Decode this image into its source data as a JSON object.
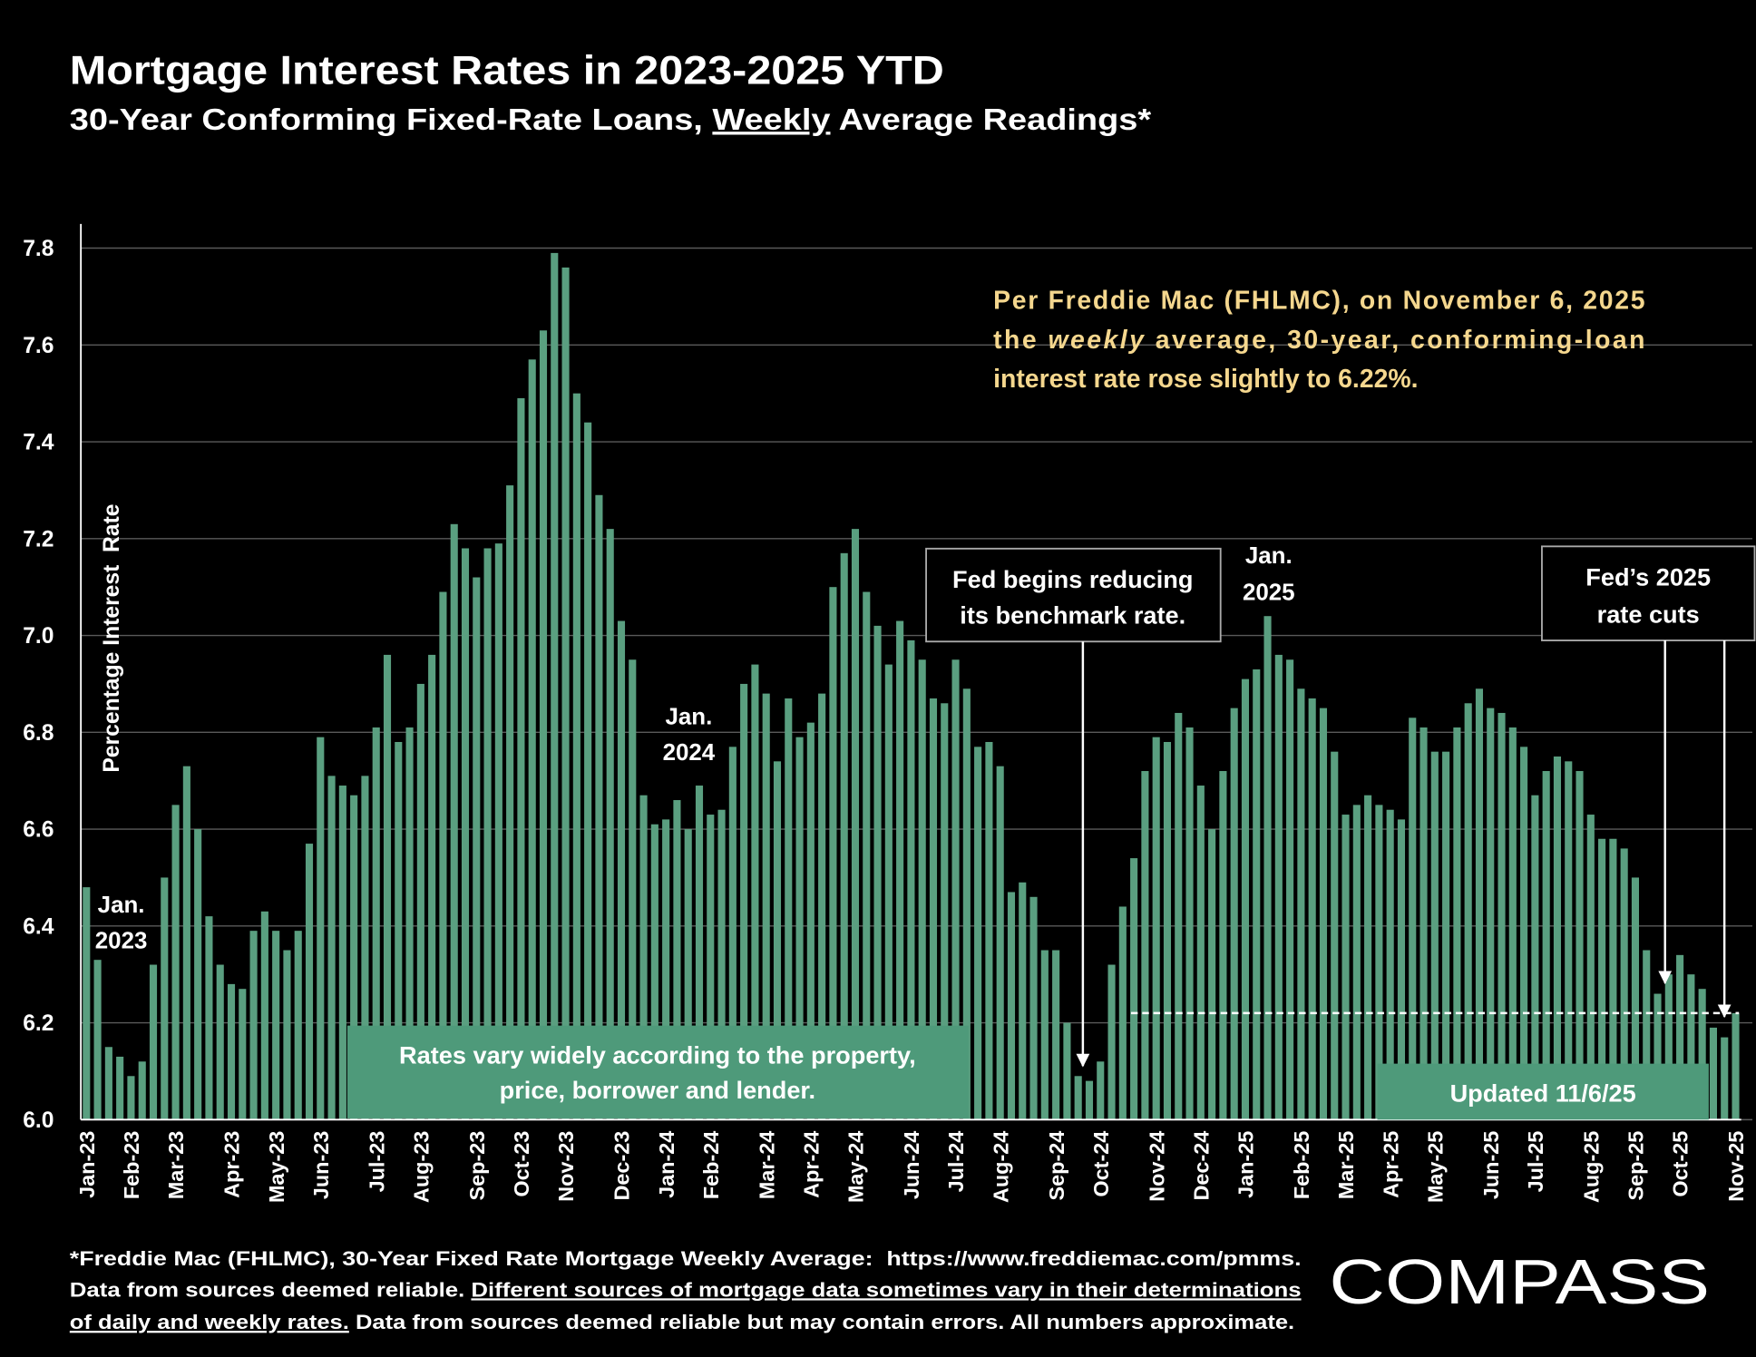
{
  "chart_data": {
    "type": "bar",
    "title": "Mortgage Interest Rates in 2023-2025 YTD",
    "subtitle": [
      "30-Year Conforming Fixed-Rate Loans, ",
      "Weekly",
      " Average Readings*"
    ],
    "y_label": "Percentage Interest  Rate",
    "color": "#5a9f80",
    "grid": true,
    "ylim": [
      6.0,
      7.85
    ],
    "yticks": [
      {
        "value": 6,
        "label": "6.0"
      },
      6.2,
      6.4,
      6.6,
      6.8,
      {
        "value": 7,
        "label": "7.0"
      },
      7.2,
      7.4,
      7.6,
      7.8
    ],
    "categories": [
      "Jan-23",
      null,
      null,
      null,
      "Feb-23",
      null,
      null,
      null,
      "Mar-23",
      null,
      null,
      null,
      null,
      "Apr-23",
      null,
      null,
      null,
      "May-23",
      null,
      null,
      null,
      "Jun-23",
      null,
      null,
      null,
      null,
      "Jul-23",
      null,
      null,
      null,
      "Aug-23",
      null,
      null,
      null,
      null,
      "Sep-23",
      null,
      null,
      null,
      "Oct-23",
      null,
      null,
      null,
      "Nov-23",
      null,
      null,
      null,
      null,
      "Dec-23",
      null,
      null,
      null,
      "Jan-24",
      null,
      null,
      null,
      "Feb-24",
      null,
      null,
      null,
      null,
      "Mar-24",
      null,
      null,
      null,
      "Apr-24",
      null,
      null,
      null,
      "May-24",
      null,
      null,
      null,
      null,
      "Jun-24",
      null,
      null,
      null,
      "Jul-24",
      null,
      null,
      null,
      "Aug-24",
      null,
      null,
      null,
      null,
      "Sep-24",
      null,
      null,
      null,
      "Oct-24",
      null,
      null,
      null,
      null,
      "Nov-24",
      null,
      null,
      null,
      "Dec-24",
      null,
      null,
      null,
      "Jan-25",
      null,
      null,
      null,
      null,
      "Feb-25",
      null,
      null,
      null,
      "Mar-25",
      null,
      null,
      null,
      "Apr-25",
      null,
      null,
      null,
      "May-25",
      null,
      null,
      null,
      null,
      "Jun-25",
      null,
      null,
      null,
      "Jul-25",
      null,
      null,
      null,
      null,
      "Aug-25",
      null,
      null,
      null,
      "Sep-25",
      null,
      null,
      null,
      "Oct-25",
      null,
      null,
      null,
      null,
      "Nov-25"
    ],
    "values": [
      6.48,
      6.33,
      6.15,
      6.13,
      6.09,
      6.12,
      6.32,
      6.5,
      6.65,
      6.73,
      6.6,
      6.42,
      6.32,
      6.28,
      6.27,
      6.39,
      6.43,
      6.39,
      6.35,
      6.39,
      6.57,
      6.79,
      6.71,
      6.69,
      6.67,
      6.71,
      6.81,
      6.96,
      6.78,
      6.81,
      6.9,
      6.96,
      7.09,
      7.23,
      7.18,
      7.12,
      7.18,
      7.19,
      7.31,
      7.49,
      7.57,
      7.63,
      7.79,
      7.76,
      7.5,
      7.44,
      7.29,
      7.22,
      7.03,
      6.95,
      6.67,
      6.61,
      6.62,
      6.66,
      6.6,
      6.69,
      6.63,
      6.64,
      6.77,
      6.9,
      6.94,
      6.88,
      6.74,
      6.87,
      6.79,
      6.82,
      6.88,
      7.1,
      7.17,
      7.22,
      7.09,
      7.02,
      6.94,
      7.03,
      6.99,
      6.95,
      6.87,
      6.86,
      6.95,
      6.89,
      6.77,
      6.78,
      6.73,
      6.47,
      6.49,
      6.46,
      6.35,
      6.35,
      6.2,
      6.09,
      6.08,
      6.12,
      6.32,
      6.44,
      6.54,
      6.72,
      6.79,
      6.78,
      6.84,
      6.81,
      6.69,
      6.6,
      6.72,
      6.85,
      6.91,
      6.93,
      7.04,
      6.96,
      6.95,
      6.89,
      6.87,
      6.85,
      6.76,
      6.63,
      6.65,
      6.67,
      6.65,
      6.64,
      6.62,
      6.83,
      6.81,
      6.76,
      6.76,
      6.81,
      6.86,
      6.89,
      6.85,
      6.84,
      6.81,
      6.77,
      6.67,
      6.72,
      6.75,
      6.74,
      6.72,
      6.63,
      6.58,
      6.58,
      6.56,
      6.5,
      6.35,
      6.26,
      6.3,
      6.34,
      6.3,
      6.27,
      6.19,
      6.17,
      6.22
    ],
    "reference_line": 6.22,
    "note": [
      "Per Freddie Mac (FHLMC), on November 6, 2025",
      [
        "the ",
        "weekly",
        " average, 30-year, conforming-loan"
      ],
      "interest rate rose slightly to 6.22%."
    ],
    "annotations": [
      [
        "Jan.",
        "2023"
      ],
      [
        "Jan.",
        "2024"
      ],
      [
        "Jan.",
        "2025"
      ]
    ],
    "fed_note": [
      "Fed begins reducing",
      "its benchmark rate."
    ],
    "fed_2025_note": [
      "Fed’s 2025",
      "rate cuts"
    ],
    "disclaimer": [
      "Rates vary widely according to the property,",
      "price, borrower and lender."
    ],
    "updated": "Updated 11/6/25"
  },
  "footnote": [
    "*Freddie Mac (FHLMC), 30-Year Fixed Rate Mortgage Weekly Average:  https://www.freddiemac.com/pmms.",
    [
      "Data from sources deemed reliable. ",
      "Different sources of mortgage data sometimes vary in their determinations"
    ],
    [
      "of daily and weekly rates.",
      " Data from sources deemed reliable but may contain errors. All numbers approximate."
    ]
  ],
  "logo": "COMPASS"
}
